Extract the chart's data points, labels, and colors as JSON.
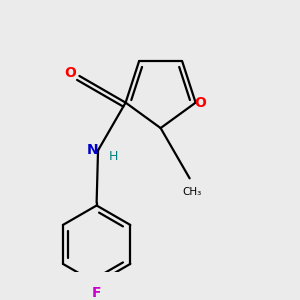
{
  "background_color": "#ebebeb",
  "bond_color": "#000000",
  "atom_colors": {
    "O": "#ff0000",
    "N": "#0000cc",
    "F": "#cc00cc",
    "H": "#008080"
  },
  "figsize": [
    3.0,
    3.0
  ],
  "dpi": 100,
  "lw": 1.6
}
